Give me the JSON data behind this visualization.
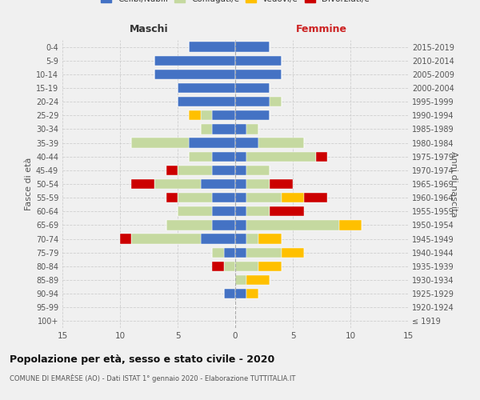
{
  "age_groups": [
    "100+",
    "95-99",
    "90-94",
    "85-89",
    "80-84",
    "75-79",
    "70-74",
    "65-69",
    "60-64",
    "55-59",
    "50-54",
    "45-49",
    "40-44",
    "35-39",
    "30-34",
    "25-29",
    "20-24",
    "15-19",
    "10-14",
    "5-9",
    "0-4"
  ],
  "birth_years": [
    "≤ 1919",
    "1920-1924",
    "1925-1929",
    "1930-1934",
    "1935-1939",
    "1940-1944",
    "1945-1949",
    "1950-1954",
    "1955-1959",
    "1960-1964",
    "1965-1969",
    "1970-1974",
    "1975-1979",
    "1980-1984",
    "1985-1989",
    "1990-1994",
    "1995-1999",
    "2000-2004",
    "2005-2009",
    "2010-2014",
    "2015-2019"
  ],
  "males": {
    "celibi": [
      0,
      0,
      1,
      0,
      0,
      1,
      3,
      2,
      2,
      2,
      3,
      2,
      2,
      4,
      2,
      2,
      5,
      5,
      7,
      7,
      4
    ],
    "coniugati": [
      0,
      0,
      0,
      0,
      1,
      1,
      6,
      4,
      3,
      3,
      4,
      3,
      2,
      5,
      1,
      1,
      0,
      0,
      0,
      0,
      0
    ],
    "vedovi": [
      0,
      0,
      0,
      0,
      0,
      0,
      0,
      0,
      0,
      0,
      0,
      0,
      0,
      0,
      0,
      1,
      0,
      0,
      0,
      0,
      0
    ],
    "divorziati": [
      0,
      0,
      0,
      0,
      1,
      0,
      1,
      0,
      0,
      1,
      2,
      1,
      0,
      0,
      0,
      0,
      0,
      0,
      0,
      0,
      0
    ]
  },
  "females": {
    "celibi": [
      0,
      0,
      1,
      0,
      0,
      1,
      1,
      1,
      1,
      1,
      1,
      1,
      1,
      2,
      1,
      3,
      3,
      3,
      4,
      4,
      3
    ],
    "coniugati": [
      0,
      0,
      0,
      1,
      2,
      3,
      1,
      8,
      2,
      3,
      2,
      2,
      6,
      4,
      1,
      0,
      1,
      0,
      0,
      0,
      0
    ],
    "vedovi": [
      0,
      0,
      1,
      2,
      2,
      2,
      2,
      2,
      0,
      2,
      0,
      0,
      0,
      0,
      0,
      0,
      0,
      0,
      0,
      0,
      0
    ],
    "divorziati": [
      0,
      0,
      0,
      0,
      0,
      0,
      0,
      0,
      3,
      2,
      2,
      0,
      1,
      0,
      0,
      0,
      0,
      0,
      0,
      0,
      0
    ]
  },
  "colors": {
    "celibi": "#4472C4",
    "coniugati": "#c5d9a0",
    "vedovi": "#ffc000",
    "divorziati": "#cc0000"
  },
  "xlim": 15,
  "title": "Popolazione per età, sesso e stato civile - 2020",
  "subtitle": "COMUNE DI EMARÈSE (AO) - Dati ISTAT 1° gennaio 2020 - Elaborazione TUTTITALIA.IT",
  "ylabel_left": "Fasce di età",
  "ylabel_right": "Anni di nascita",
  "xlabel_left": "Maschi",
  "xlabel_right": "Femmine",
  "bg_color": "#f0f0f0",
  "grid_color": "#cccccc"
}
